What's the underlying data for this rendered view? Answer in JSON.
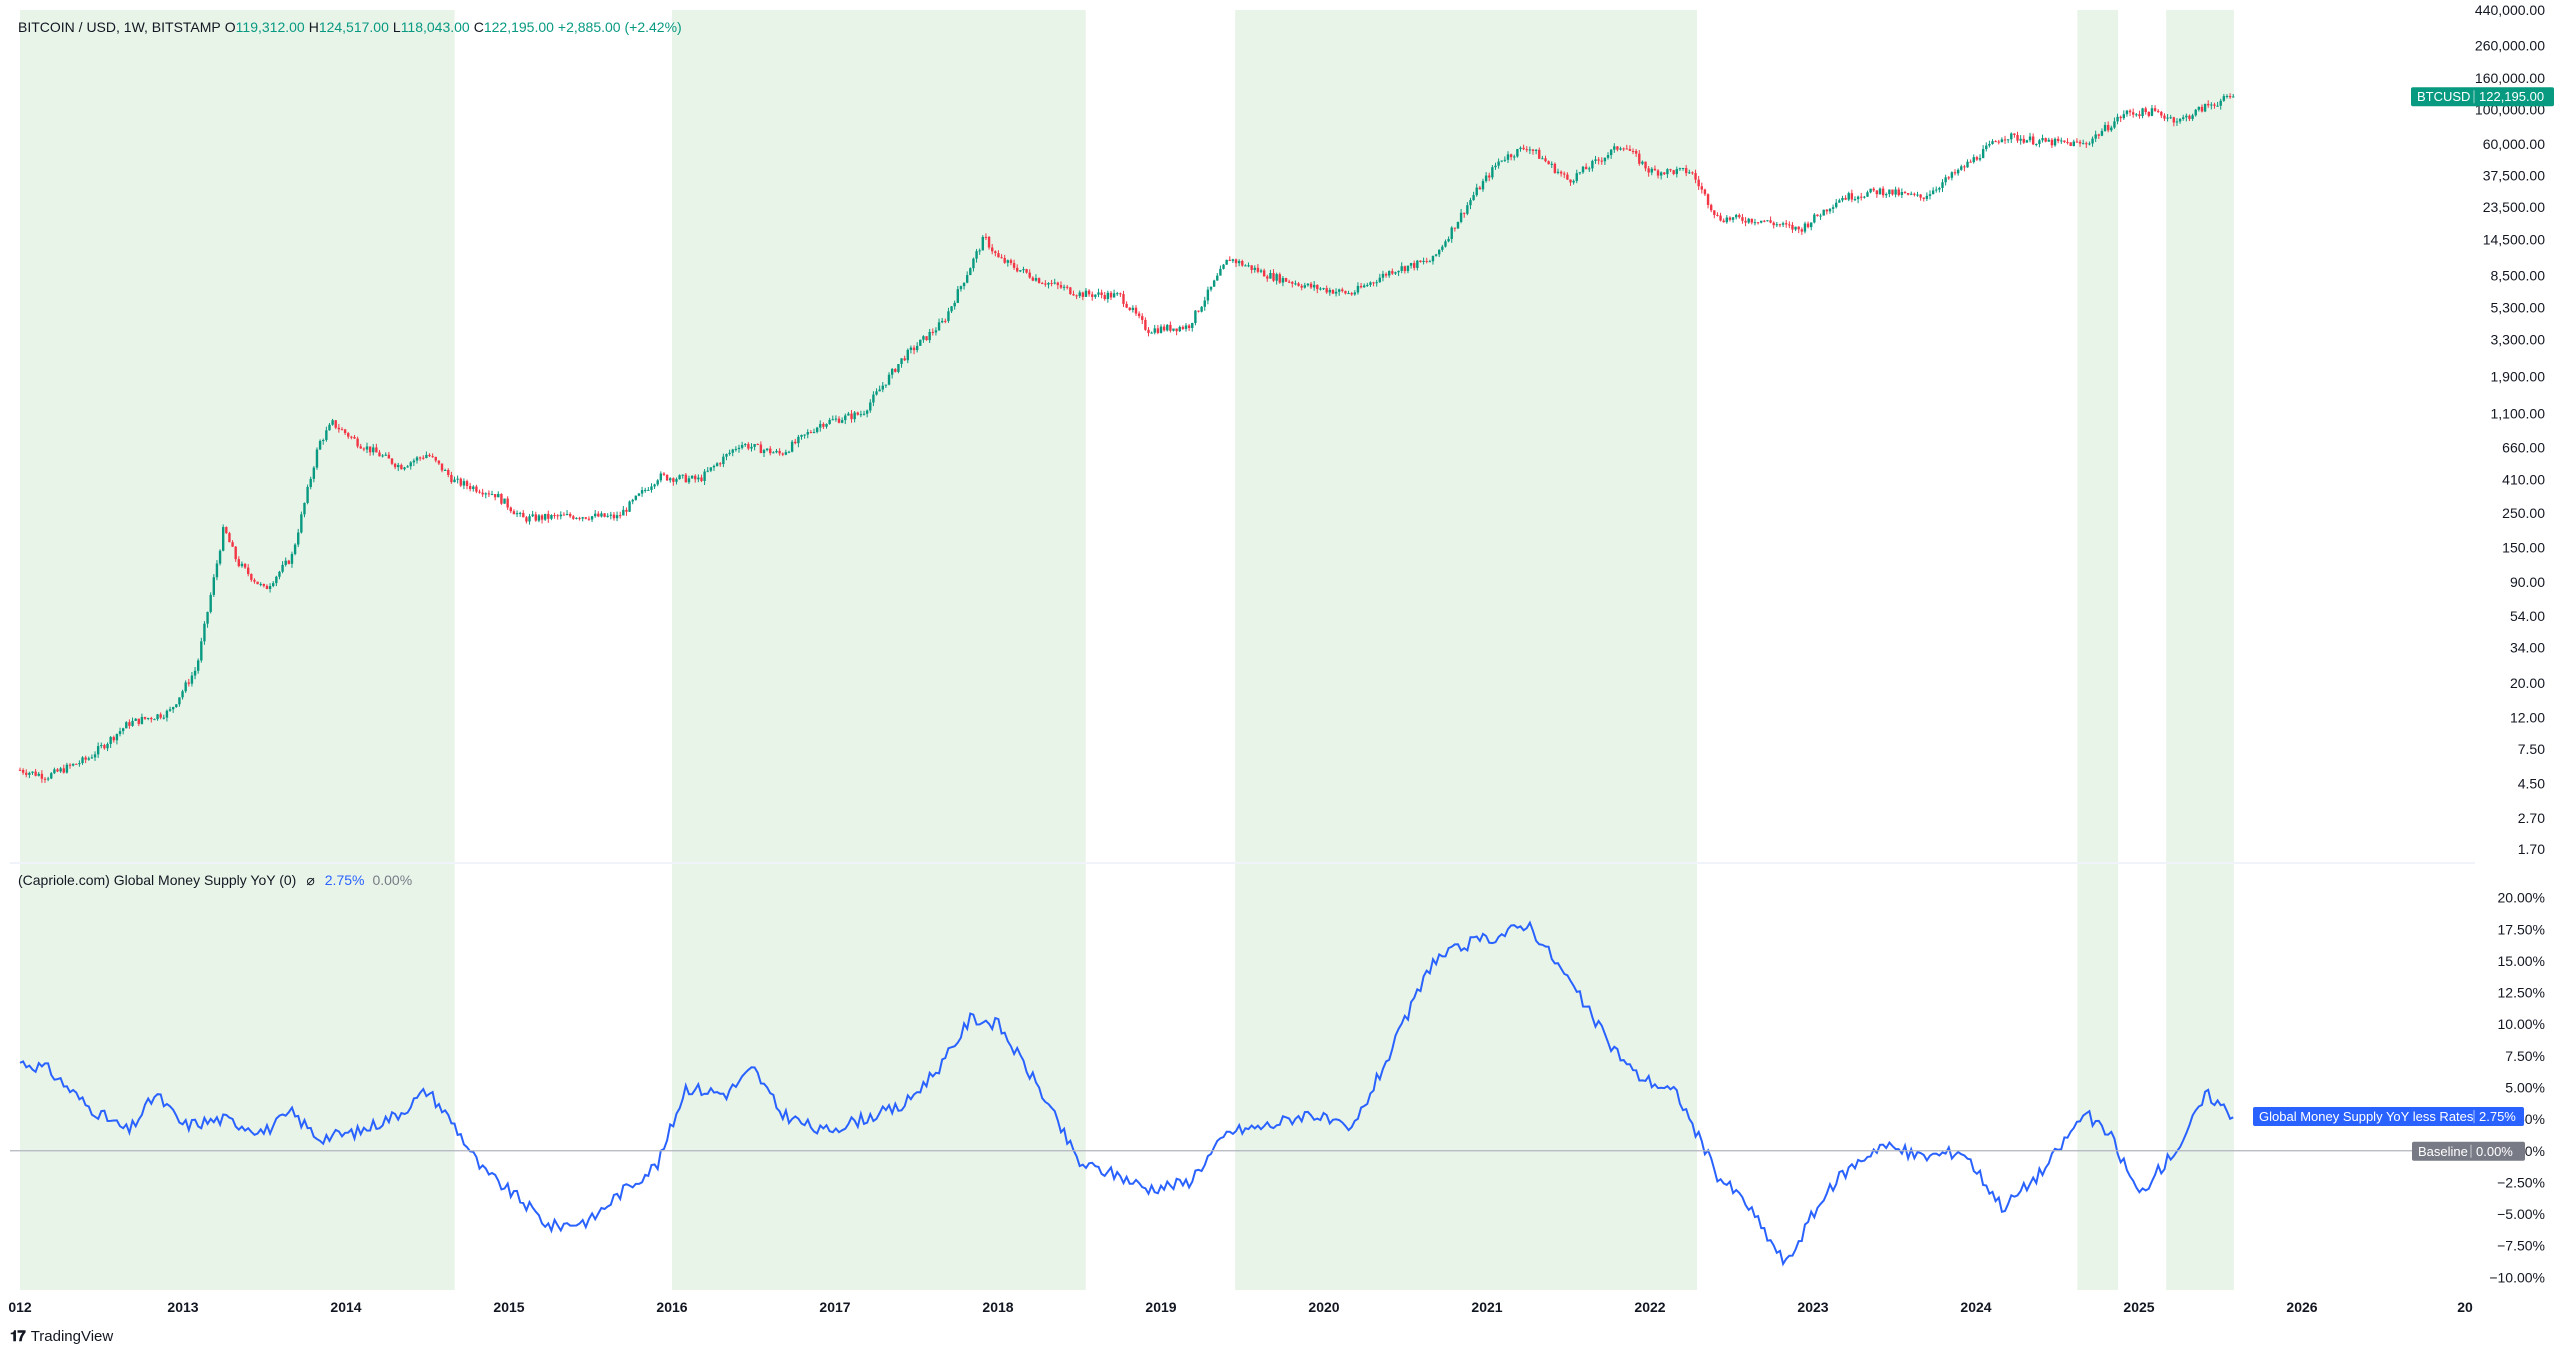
{
  "header": {
    "symbol": "BITCOIN / USD, 1W, BITSTAMP",
    "o_label": "O",
    "o_value": "119,312.00",
    "h_label": "H",
    "h_value": "124,517.00",
    "l_label": "L",
    "l_value": "118,043.00",
    "c_label": "C",
    "c_value": "122,195.00",
    "change": "+2,885.00 (+2.42%)"
  },
  "indicator_header": {
    "name": "(Capriole.com) Global Money Supply YoY (0)",
    "symbol": "⌀",
    "value": "2.75%",
    "baseline": "0.00%"
  },
  "footer": {
    "brand": "TradingView",
    "logo": "tv-logo-icon"
  },
  "colors": {
    "up": "#089981",
    "down": "#f23645",
    "line": "#2962ff",
    "shade": "#e9f4e9",
    "baseline": "#b2b5be"
  },
  "chart_data": [
    {
      "type": "candlestick",
      "title": "BITCOIN / USD, 1W, BITSTAMP",
      "scale": "log",
      "ylim": [
        1.4,
        440000
      ],
      "xlim": [
        "2012-01-01",
        "2026-12-31"
      ],
      "x_ticks": [
        "012",
        "2013",
        "2014",
        "2015",
        "2016",
        "2017",
        "2018",
        "2019",
        "2020",
        "2021",
        "2022",
        "2023",
        "2024",
        "2025",
        "2026",
        "20"
      ],
      "y_ticks": [
        "440,000.00",
        "260,000.00",
        "160,000.00",
        "100,000.00",
        "60,000.00",
        "37,500.00",
        "23,500.00",
        "14,500.00",
        "8,500.00",
        "5,300.00",
        "3,300.00",
        "1,900.00",
        "1,100.00",
        "660.00",
        "410.00",
        "250.00",
        "150.00",
        "90.00",
        "54.00",
        "34.00",
        "20.00",
        "12.00",
        "7.50",
        "4.50",
        "2.70",
        "1.70"
      ],
      "price_label": {
        "symbol": "BTCUSD",
        "value": "122,195.00"
      },
      "shaded_periods": [
        [
          "2012-01-01",
          "2014-09-01"
        ],
        [
          "2016-01-01",
          "2018-07-15"
        ],
        [
          "2019-06-15",
          "2022-04-15"
        ],
        [
          "2024-08-15",
          "2024-11-15"
        ],
        [
          "2025-03-01",
          "2025-07-31"
        ]
      ],
      "approx_price_path": [
        [
          "2012-01",
          5.5
        ],
        [
          "2012-03",
          5.0
        ],
        [
          "2012-06",
          6.5
        ],
        [
          "2012-09",
          11
        ],
        [
          "2012-12",
          13
        ],
        [
          "2013-02",
          25
        ],
        [
          "2013-04",
          200
        ],
        [
          "2013-05",
          120
        ],
        [
          "2013-07",
          80
        ],
        [
          "2013-09",
          130
        ],
        [
          "2013-11",
          700
        ],
        [
          "2013-12",
          950
        ],
        [
          "2014-02",
          700
        ],
        [
          "2014-05",
          500
        ],
        [
          "2014-07",
          600
        ],
        [
          "2014-09",
          400
        ],
        [
          "2014-12",
          330
        ],
        [
          "2015-02",
          230
        ],
        [
          "2015-06",
          240
        ],
        [
          "2015-09",
          235
        ],
        [
          "2015-12",
          430
        ],
        [
          "2016-03",
          410
        ],
        [
          "2016-06",
          700
        ],
        [
          "2016-09",
          600
        ],
        [
          "2016-12",
          950
        ],
        [
          "2017-03",
          1100
        ],
        [
          "2017-06",
          2500
        ],
        [
          "2017-09",
          4300
        ],
        [
          "2017-12",
          15000
        ],
        [
          "2018-01",
          11000
        ],
        [
          "2018-04",
          8000
        ],
        [
          "2018-07",
          6500
        ],
        [
          "2018-10",
          6300
        ],
        [
          "2018-12",
          3800
        ],
        [
          "2019-03",
          4000
        ],
        [
          "2019-06",
          11000
        ],
        [
          "2019-09",
          8500
        ],
        [
          "2019-12",
          7200
        ],
        [
          "2020-03",
          6500
        ],
        [
          "2020-06",
          9200
        ],
        [
          "2020-09",
          10700
        ],
        [
          "2020-12",
          28000
        ],
        [
          "2021-02",
          48000
        ],
        [
          "2021-04",
          58000
        ],
        [
          "2021-07",
          35000
        ],
        [
          "2021-11",
          60000
        ],
        [
          "2022-01",
          40000
        ],
        [
          "2022-04",
          40000
        ],
        [
          "2022-06",
          20000
        ],
        [
          "2022-09",
          19500
        ],
        [
          "2022-12",
          16800
        ],
        [
          "2023-03",
          27000
        ],
        [
          "2023-06",
          30000
        ],
        [
          "2023-09",
          27000
        ],
        [
          "2023-12",
          42000
        ],
        [
          "2024-03",
          68000
        ],
        [
          "2024-06",
          62000
        ],
        [
          "2024-09",
          60000
        ],
        [
          "2024-12",
          95000
        ],
        [
          "2025-02",
          97000
        ],
        [
          "2025-04",
          85000
        ],
        [
          "2025-06",
          106000
        ],
        [
          "2025-08",
          122195
        ]
      ]
    },
    {
      "type": "line",
      "title": "(Capriole.com) Global Money Supply YoY (0)",
      "series": [
        {
          "name": "Global Money Supply YoY less Rates",
          "last_value": "2.75%"
        }
      ],
      "baseline": {
        "name": "Baseline",
        "value": "0.00%"
      },
      "ylim": [
        -11,
        21
      ],
      "y_ticks": [
        "20.00%",
        "17.50%",
        "15.00%",
        "12.50%",
        "10.00%",
        "7.50%",
        "5.00%",
        "2.50%",
        "0.00%",
        "−2.50%",
        "−5.00%",
        "−7.50%",
        "−10.00%"
      ],
      "approx_values": [
        [
          "2012-01",
          7.0
        ],
        [
          "2012-03",
          6.5
        ],
        [
          "2012-06",
          3.5
        ],
        [
          "2012-09",
          1.5
        ],
        [
          "2012-11",
          4.5
        ],
        [
          "2013-01",
          2.0
        ],
        [
          "2013-04",
          2.5
        ],
        [
          "2013-07",
          1.5
        ],
        [
          "2013-09",
          3.0
        ],
        [
          "2013-11",
          1.0
        ],
        [
          "2014-02",
          1.5
        ],
        [
          "2014-05",
          3.0
        ],
        [
          "2014-07",
          4.8
        ],
        [
          "2014-09",
          2.0
        ],
        [
          "2014-11",
          -1.5
        ],
        [
          "2015-02",
          -4.0
        ],
        [
          "2015-04",
          -6.0
        ],
        [
          "2015-07",
          -5.5
        ],
        [
          "2015-09",
          -3.5
        ],
        [
          "2015-12",
          -1.0
        ],
        [
          "2016-02",
          5.0
        ],
        [
          "2016-05",
          4.5
        ],
        [
          "2016-07",
          6.5
        ],
        [
          "2016-09",
          3.0
        ],
        [
          "2016-12",
          1.5
        ],
        [
          "2017-03",
          2.5
        ],
        [
          "2017-06",
          3.5
        ],
        [
          "2017-09",
          7.0
        ],
        [
          "2017-11",
          10.5
        ],
        [
          "2018-01",
          10.0
        ],
        [
          "2018-04",
          5.0
        ],
        [
          "2018-07",
          -1.0
        ],
        [
          "2018-10",
          -2.0
        ],
        [
          "2018-12",
          -3.0
        ],
        [
          "2019-03",
          -2.5
        ],
        [
          "2019-06",
          1.5
        ],
        [
          "2019-09",
          2.0
        ],
        [
          "2019-12",
          3.0
        ],
        [
          "2020-03",
          1.5
        ],
        [
          "2020-06",
          8.0
        ],
        [
          "2020-09",
          15.0
        ],
        [
          "2020-12",
          16.5
        ],
        [
          "2021-02",
          17.0
        ],
        [
          "2021-04",
          18.0
        ],
        [
          "2021-07",
          13.5
        ],
        [
          "2021-10",
          8.5
        ],
        [
          "2021-12",
          6.0
        ],
        [
          "2022-03",
          4.5
        ],
        [
          "2022-06",
          -2.0
        ],
        [
          "2022-08",
          -4.0
        ],
        [
          "2022-11",
          -9.0
        ],
        [
          "2023-01",
          -5.0
        ],
        [
          "2023-03",
          -2.0
        ],
        [
          "2023-06",
          0.5
        ],
        [
          "2023-09",
          -0.5
        ],
        [
          "2023-12",
          0.0
        ],
        [
          "2024-03",
          -4.5
        ],
        [
          "2024-06",
          -1.5
        ],
        [
          "2024-09",
          3.0
        ],
        [
          "2024-11",
          1.0
        ],
        [
          "2025-01",
          -3.5
        ],
        [
          "2025-04",
          0.5
        ],
        [
          "2025-06",
          4.5
        ],
        [
          "2025-08",
          2.75
        ]
      ]
    }
  ]
}
